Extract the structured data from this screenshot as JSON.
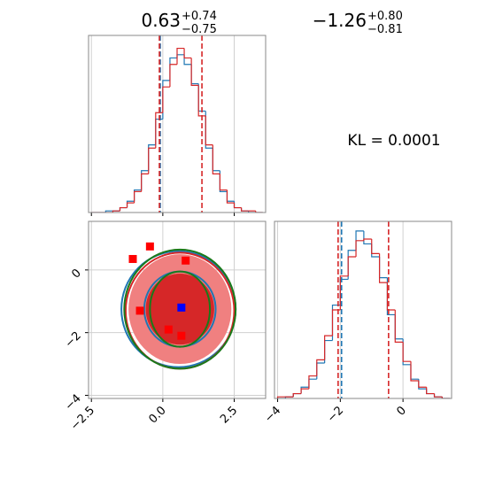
{
  "annotation": "KL = 0.0001",
  "chart_data": [
    {
      "type": "histogram",
      "title": {
        "value": "0.63",
        "plus": "+0.74",
        "minus": "−0.75"
      },
      "bins": [
        -2.5,
        -2.25,
        -2,
        -1.75,
        -1.5,
        -1.25,
        -1,
        -0.75,
        -0.5,
        -0.25,
        0,
        0.25,
        0.5,
        0.75,
        1,
        1.25,
        1.5,
        1.75,
        2,
        2.25,
        2.5,
        2.75,
        3,
        3.25,
        3.5
      ],
      "series": [
        {
          "color": "#1f77b4",
          "values": [
            0,
            0,
            1,
            1,
            3,
            7,
            14,
            26,
            42,
            58,
            82,
            96,
            98,
            92,
            80,
            63,
            40,
            26,
            13,
            7,
            3,
            1,
            0,
            0
          ]
        },
        {
          "color": "#d62728",
          "values": [
            0,
            0,
            0,
            1,
            3,
            6,
            13,
            24,
            40,
            62,
            78,
            92,
            102,
            96,
            79,
            60,
            42,
            24,
            14,
            6,
            3,
            1,
            1,
            0
          ]
        }
      ],
      "quantiles": [
        {
          "color": "#1f77b4",
          "values": [
            -0.09
          ]
        },
        {
          "color": "#d62728",
          "values": [
            -0.12,
            1.37
          ]
        }
      ],
      "xlim": [
        -2.6,
        3.6
      ],
      "ylim": [
        0,
        110
      ],
      "xticks": [
        -2.5,
        0,
        2.5
      ],
      "grid": true,
      "show_xtick_labels": false
    },
    {
      "type": "scatter",
      "xlim": [
        -2.6,
        3.6
      ],
      "ylim": [
        -4.1,
        1.55
      ],
      "xticks": [
        {
          "value": -2.5,
          "label": "−2.5"
        },
        {
          "value": 0,
          "label": "0.0"
        },
        2.5
      ],
      "yticks": [
        0,
        {
          "value": -2,
          "label": "−2"
        },
        {
          "value": -4,
          "label": "−4"
        }
      ],
      "grid": true,
      "contours": [
        {
          "color": "#f08080",
          "fill": true,
          "cx": 0.6,
          "cy": -1.25,
          "rx": 1.8,
          "ry": 1.75
        },
        {
          "color": "#d62728",
          "fill": true,
          "cx": 0.6,
          "cy": -1.25,
          "rx": 1.2,
          "ry": 1.13
        },
        {
          "color": "#1f77b4",
          "fill": false,
          "cx": 0.55,
          "cy": -1.25,
          "rx": 2.0,
          "ry": 1.85
        },
        {
          "color": "#d62728",
          "fill": false,
          "cx": 0.6,
          "cy": -1.3,
          "rx": 1.9,
          "ry": 1.85
        },
        {
          "color": "#1a7a1a",
          "fill": false,
          "cx": 0.6,
          "cy": -1.25,
          "rx": 1.95,
          "ry": 1.9
        },
        {
          "color": "#1f77b4",
          "fill": false,
          "cx": 0.6,
          "cy": -1.25,
          "rx": 1.25,
          "ry": 1.2
        },
        {
          "color": "#d62728",
          "fill": false,
          "cx": 0.6,
          "cy": -1.25,
          "rx": 1.15,
          "ry": 1.1
        },
        {
          "color": "#1a7a1a",
          "fill": false,
          "cx": 0.6,
          "cy": -1.25,
          "rx": 1.05,
          "ry": 1.2
        }
      ],
      "series": [
        {
          "color": "#ff0000",
          "x": [
            -1.05,
            -0.45,
            0.8,
            -0.8,
            0.2,
            0.65
          ],
          "y": [
            0.35,
            0.75,
            0.3,
            -1.3,
            -1.9,
            -2.1
          ]
        },
        {
          "color": "#0000ff",
          "x": [
            0.65
          ],
          "y": [
            -1.2
          ]
        }
      ]
    },
    {
      "type": "histogram",
      "title": {
        "value": "−1.26",
        "plus": "+0.80",
        "minus": "−0.81"
      },
      "bins": [
        -4,
        -3.75,
        -3.5,
        -3.25,
        -3,
        -2.75,
        -2.5,
        -2.25,
        -2,
        -1.75,
        -1.5,
        -1.25,
        -1,
        -0.75,
        -0.5,
        -0.25,
        0,
        0.25,
        0.5,
        0.75,
        1,
        1.25,
        1.5
      ],
      "series": [
        {
          "color": "#1f77b4",
          "values": [
            0,
            1,
            3,
            7,
            12,
            22,
            36,
            58,
            74,
            92,
            104,
            96,
            88,
            75,
            52,
            37,
            21,
            12,
            6,
            3,
            1,
            0
          ]
        },
        {
          "color": "#d62728",
          "values": [
            1,
            1,
            3,
            6,
            14,
            24,
            39,
            55,
            76,
            88,
            98,
            99,
            90,
            72,
            55,
            35,
            23,
            11,
            7,
            3,
            1,
            0
          ]
        }
      ],
      "quantiles": [
        {
          "color": "#1f77b4",
          "values": [
            -1.96
          ]
        },
        {
          "color": "#d62728",
          "values": [
            -2.07,
            -0.46
          ]
        }
      ],
      "xlim": [
        -4.1,
        1.55
      ],
      "ylim": [
        0,
        110
      ],
      "xticks": [
        {
          "value": -4,
          "label": "−4"
        },
        {
          "value": -2,
          "label": "−2"
        },
        0
      ],
      "grid": true,
      "show_xtick_labels": true
    }
  ]
}
